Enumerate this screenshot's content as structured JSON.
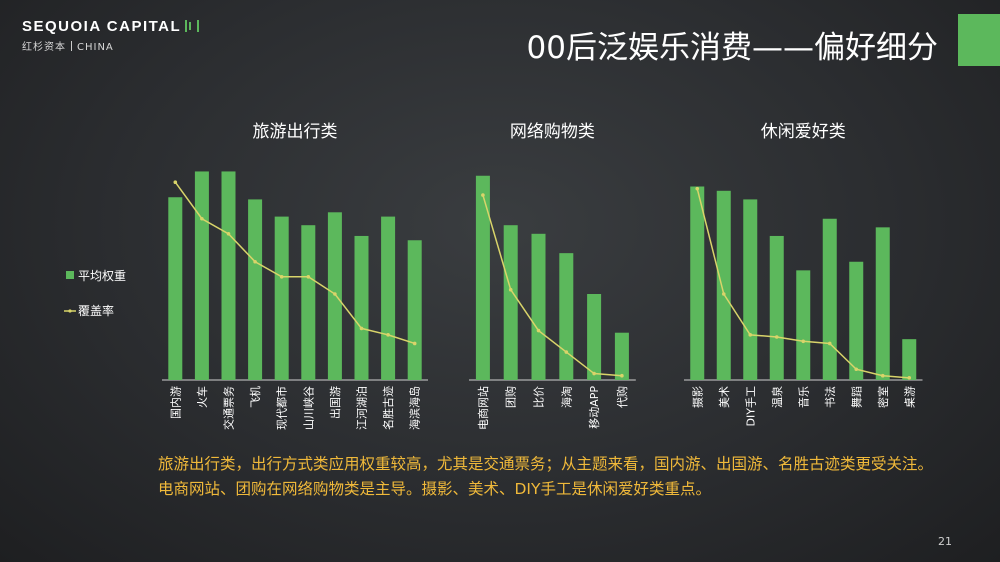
{
  "logo": {
    "name": "SEQUOIA CAPITAL",
    "cn": "红杉资本",
    "region": "CHINA"
  },
  "title": "00后泛娱乐消费——偏好细分",
  "legend": {
    "bar": "平均权重",
    "line": "覆盖率"
  },
  "colors": {
    "bar": "#5cb85c",
    "line": "#d9d46a",
    "accent": "#f0b93a"
  },
  "chart_data": [
    {
      "type": "bar",
      "title": "旅游出行类",
      "categories": [
        "国内游",
        "火车",
        "交通票务",
        "飞机",
        "现代都市",
        "山川峡谷",
        "出国游",
        "江河湖泊",
        "名胜古迹",
        "海滨海岛"
      ],
      "series": [
        {
          "name": "平均权重",
          "type": "bar",
          "values": [
            0.85,
            0.97,
            0.97,
            0.84,
            0.76,
            0.72,
            0.78,
            0.67,
            0.76,
            0.65
          ]
        },
        {
          "name": "覆盖率",
          "type": "line",
          "values": [
            0.92,
            0.75,
            0.68,
            0.55,
            0.48,
            0.48,
            0.4,
            0.24,
            0.21,
            0.17
          ]
        }
      ],
      "ylim": [
        0,
        1
      ]
    },
    {
      "type": "bar",
      "title": "网络购物类",
      "categories": [
        "电商网站",
        "团购",
        "比价",
        "海淘",
        "移动APP",
        "代购"
      ],
      "series": [
        {
          "name": "平均权重",
          "type": "bar",
          "values": [
            0.95,
            0.72,
            0.68,
            0.59,
            0.4,
            0.22
          ]
        },
        {
          "name": "覆盖率",
          "type": "line",
          "values": [
            0.86,
            0.42,
            0.23,
            0.13,
            0.03,
            0.02
          ]
        }
      ],
      "ylim": [
        0,
        1
      ]
    },
    {
      "type": "bar",
      "title": "休闲爱好类",
      "categories": [
        "摄影",
        "美术",
        "DIY手工",
        "温泉",
        "音乐",
        "书法",
        "舞蹈",
        "密室",
        "桌游"
      ],
      "series": [
        {
          "name": "平均权重",
          "type": "bar",
          "values": [
            0.9,
            0.88,
            0.84,
            0.67,
            0.51,
            0.75,
            0.55,
            0.71,
            0.19
          ]
        },
        {
          "name": "覆盖率",
          "type": "line",
          "values": [
            0.89,
            0.4,
            0.21,
            0.2,
            0.18,
            0.17,
            0.05,
            0.02,
            0.01
          ]
        }
      ],
      "ylim": [
        0,
        1
      ]
    }
  ],
  "summary": "旅游出行类，出行方式类应用权重较高，尤其是交通票务；从主题来看，国内游、出国游、名胜古迹类更受关注。电商网站、团购在网络购物类是主导。摄影、美术、DIY手工是休闲爱好类重点。",
  "page_number": "21"
}
